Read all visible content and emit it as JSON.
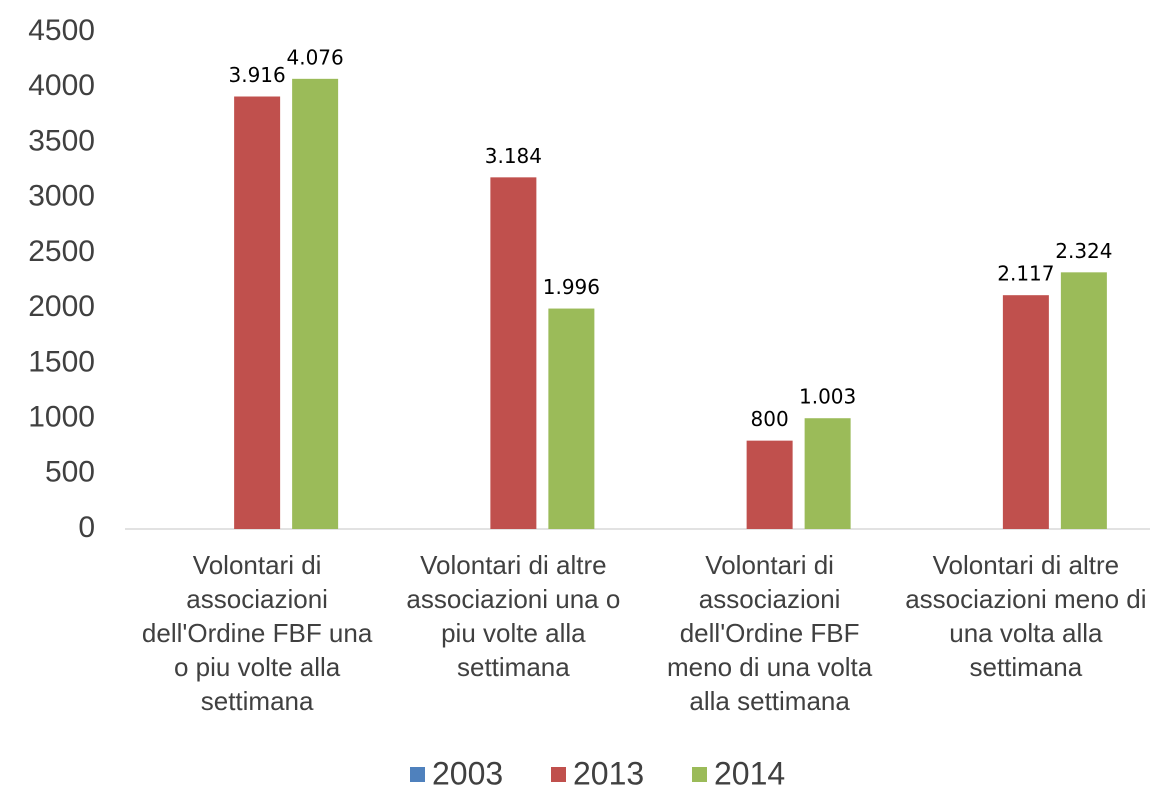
{
  "chart_data": {
    "type": "bar",
    "categories": [
      "Volontari di associazioni dell'Ordine FBF una o piu volte alla settimana",
      "Volontari di altre associazioni una o piu volte alla settimana",
      "Volontari di associazioni dell'Ordine FBF meno di una volta alla settimana",
      "Volontari di altre associazioni meno di una volta alla settimana"
    ],
    "series": [
      {
        "name": "2003",
        "color": "#4f81bd",
        "values": [
          null,
          null,
          null,
          null
        ]
      },
      {
        "name": "2013",
        "color": "#c0504d",
        "values": [
          3916,
          3184,
          800,
          2117
        ],
        "value_labels": [
          "3.916",
          "3.184",
          "800",
          "2.117"
        ]
      },
      {
        "name": "2014",
        "color": "#9bbb59",
        "values": [
          4076,
          1996,
          1003,
          2324
        ],
        "value_labels": [
          "4.076",
          "1.996",
          "1.003",
          "2.324"
        ]
      }
    ],
    "ylim": [
      0,
      4500
    ],
    "yticks": [
      0,
      500,
      1000,
      1500,
      2000,
      2500,
      3000,
      3500,
      4000,
      4500
    ],
    "grid": false,
    "legend": "bottom"
  }
}
